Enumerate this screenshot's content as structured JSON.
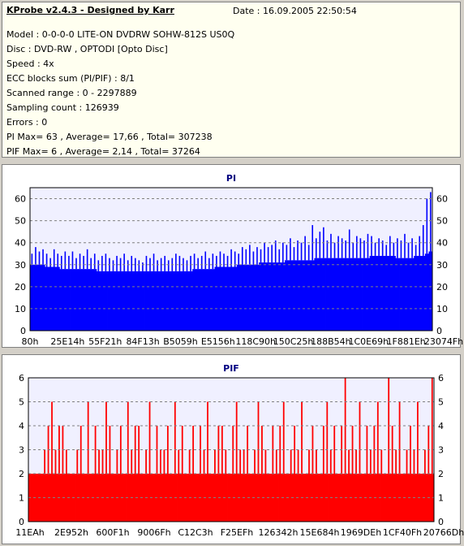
{
  "info": {
    "title": "KProbe v2.4.3 - Designed by Karr",
    "date": "Date : 16.09.2005 22:50:54",
    "lines": [
      "Model : 0-0-0-0 LITE-ON DVDRW SOHW-812S  US0Q",
      "Disc : DVD-RW , OPTODI [Opto Disc]",
      "Speed : 4x",
      "ECC blocks sum (PI/PIF) : 8/1",
      "Scanned range : 0 - 2297889",
      "Sampling count : 126939",
      "Errors : 0",
      "PI Max= 63 , Average= 17,66 , Total= 307238",
      "PIF Max= 6 , Average= 2,14 , Total= 37264"
    ]
  },
  "colors": {
    "pi": "#0000ff",
    "pif": "#ff0000",
    "plot_bg": "#f0f0ff",
    "title": "#000080"
  },
  "chart_data": [
    {
      "type": "bar",
      "title": "PI",
      "ylim": [
        0,
        65
      ],
      "yticks": [
        0,
        10,
        20,
        30,
        40,
        50,
        60
      ],
      "grid": true,
      "xtick_labels": [
        "80h",
        "25E14h",
        "55F21h",
        "84F13h",
        "B5059h",
        "E5156h",
        "118C90h",
        "150C25h",
        "188B54h",
        "1C0E69h",
        "1F881Eh",
        "23074Fh"
      ],
      "max": 63,
      "series": [
        {
          "values": [
            30,
            30,
            30,
            30,
            29,
            29,
            29,
            29,
            28,
            28,
            28,
            28,
            28,
            28,
            28,
            28,
            28,
            28,
            27,
            27,
            27,
            27,
            27,
            27,
            27,
            27,
            27,
            27,
            27,
            27,
            27,
            27,
            27,
            27,
            27,
            27,
            27,
            27,
            27,
            27,
            27,
            27,
            27,
            27,
            28,
            28,
            28,
            28,
            28,
            28,
            29,
            29,
            29,
            29,
            29,
            29,
            30,
            30,
            30,
            30,
            30,
            30,
            31,
            31,
            31,
            31,
            31,
            31,
            31,
            32,
            32,
            32,
            32,
            32,
            32,
            32,
            32,
            33,
            33,
            33,
            33,
            33,
            33,
            33,
            33,
            33,
            33,
            33,
            33,
            33,
            33,
            33,
            34,
            34,
            34,
            34,
            34,
            34,
            34,
            33,
            33,
            33,
            33,
            33,
            34,
            34,
            34,
            35,
            36
          ],
          "peaks": [
            35,
            38,
            36,
            37,
            35,
            33,
            37,
            35,
            34,
            36,
            34,
            36,
            33,
            35,
            34,
            37,
            33,
            35,
            32,
            34,
            35,
            33,
            32,
            34,
            33,
            35,
            32,
            34,
            33,
            32,
            31,
            34,
            33,
            35,
            32,
            33,
            34,
            32,
            33,
            35,
            34,
            33,
            32,
            34,
            35,
            33,
            34,
            36,
            33,
            35,
            34,
            36,
            35,
            34,
            37,
            36,
            35,
            38,
            37,
            39,
            36,
            38,
            37,
            40,
            38,
            39,
            41,
            37,
            40,
            39,
            42,
            38,
            41,
            40,
            43,
            39,
            48,
            42,
            45,
            47,
            41,
            44,
            40,
            43,
            42,
            41,
            46,
            40,
            43,
            42,
            41,
            44,
            43,
            40,
            42,
            41,
            39,
            43,
            40,
            42,
            41,
            44,
            40,
            42,
            39,
            43,
            48,
            60,
            63
          ]
        }
      ]
    },
    {
      "type": "bar",
      "title": "PIF",
      "ylim": [
        0,
        6
      ],
      "yticks": [
        0,
        1,
        2,
        3,
        4,
        5,
        6
      ],
      "grid": true,
      "xtick_labels": [
        "11EAh",
        "2E952h",
        "600F1h",
        "9006Fh",
        "C12C3h",
        "F25EFh",
        "126342h",
        "15E684h",
        "1969DEh",
        "1CF40Fh",
        "20766Dh"
      ],
      "max": 6,
      "series": [
        {
          "values": [
            2,
            2,
            2,
            2,
            3,
            4,
            5,
            3,
            4,
            4,
            3,
            2,
            2,
            3,
            4,
            2,
            5,
            2,
            4,
            3,
            3,
            5,
            4,
            2,
            3,
            4,
            2,
            5,
            3,
            4,
            4,
            2,
            3,
            5,
            2,
            4,
            3,
            3,
            4,
            2,
            5,
            3,
            4,
            2,
            3,
            4,
            2,
            4,
            3,
            5,
            2,
            3,
            4,
            4,
            3,
            2,
            4,
            5,
            3,
            3,
            4,
            2,
            3,
            5,
            4,
            3,
            2,
            4,
            3,
            4,
            5,
            2,
            3,
            4,
            3,
            5,
            2,
            3,
            4,
            3,
            2,
            4,
            5,
            3,
            4,
            2,
            4,
            6,
            3,
            4,
            3,
            5,
            2,
            4,
            3,
            4,
            5,
            3,
            2,
            6,
            4,
            3,
            5,
            2,
            3,
            4,
            3,
            5,
            2,
            3,
            4,
            6
          ],
          "baseline": 2
        }
      ]
    }
  ]
}
